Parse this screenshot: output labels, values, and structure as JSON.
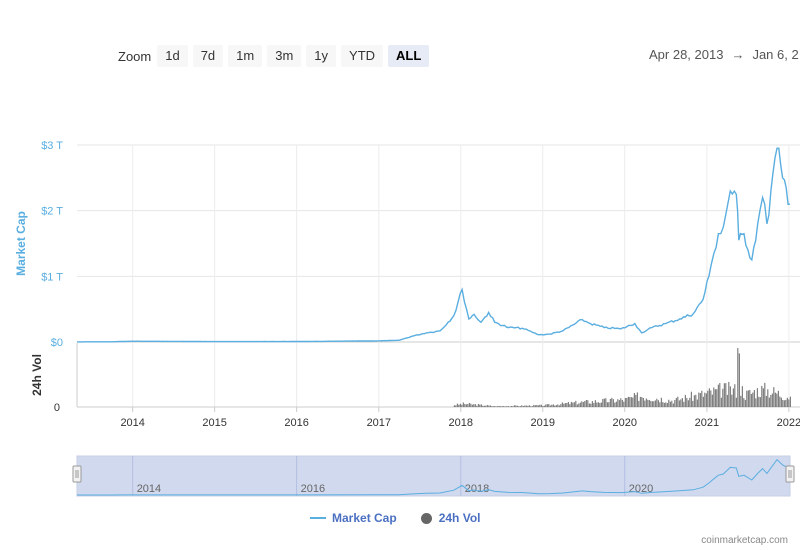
{
  "toolbar": {
    "zoom_label": "Zoom",
    "buttons": [
      "1d",
      "7d",
      "1m",
      "3m",
      "1y",
      "YTD",
      "ALL"
    ],
    "active": "ALL"
  },
  "date_range": {
    "from": "Apr 28, 2013",
    "arrow": "→",
    "to": "Jan 6, 2"
  },
  "legend": {
    "market_cap": "Market Cap",
    "volume": "24h Vol"
  },
  "credit": "coinmarketcap.com",
  "colors": {
    "line": "#5aaee0",
    "volume": "#666666",
    "navigator_fill": "#d1d9ee",
    "accent": "#4b70c2"
  },
  "chart_data": {
    "type": "line",
    "x_tick_labels": [
      "2014",
      "2015",
      "2016",
      "2017",
      "2018",
      "2019",
      "2020",
      "2021",
      "2022"
    ],
    "y_tick_labels": [
      "$0",
      "$1 T",
      "$2 T",
      "$3 T"
    ],
    "ylabel": "Market Cap",
    "ylim": [
      0,
      3
    ],
    "volume_axis_label": "24h Vol",
    "volume_tick_labels": [
      "0"
    ],
    "navigator_tick_labels": [
      "2014",
      "2016",
      "2018",
      "2020"
    ],
    "series": [
      {
        "name": "Market Cap",
        "x": [
          "2013-04-28",
          "2013-10-01",
          "2014-01-01",
          "2015-01-01",
          "2016-01-01",
          "2017-01-01",
          "2017-04-01",
          "2017-06-01",
          "2017-08-01",
          "2017-10-01",
          "2017-12-01",
          "2018-01-07",
          "2018-02-06",
          "2018-03-01",
          "2018-04-01",
          "2018-05-05",
          "2018-06-01",
          "2018-08-01",
          "2018-10-01",
          "2018-12-15",
          "2019-02-01",
          "2019-04-01",
          "2019-06-26",
          "2019-08-01",
          "2019-10-01",
          "2019-12-15",
          "2020-02-15",
          "2020-03-16",
          "2020-05-01",
          "2020-07-01",
          "2020-09-01",
          "2020-11-01",
          "2020-12-15",
          "2021-01-10",
          "2021-02-01",
          "2021-02-21",
          "2021-03-15",
          "2021-04-15",
          "2021-05-12",
          "2021-05-23",
          "2021-06-15",
          "2021-07-20",
          "2021-08-15",
          "2021-09-06",
          "2021-09-25",
          "2021-11-09",
          "2021-12-04",
          "2021-12-20",
          "2022-01-06"
        ],
        "values": [
          0.002,
          0.003,
          0.012,
          0.006,
          0.007,
          0.017,
          0.026,
          0.09,
          0.14,
          0.17,
          0.4,
          0.8,
          0.35,
          0.42,
          0.3,
          0.45,
          0.3,
          0.22,
          0.21,
          0.11,
          0.12,
          0.17,
          0.34,
          0.28,
          0.22,
          0.2,
          0.28,
          0.14,
          0.22,
          0.28,
          0.35,
          0.43,
          0.65,
          1.0,
          1.35,
          1.65,
          1.75,
          2.3,
          2.25,
          1.55,
          1.65,
          1.25,
          1.8,
          2.2,
          1.8,
          2.95,
          2.5,
          2.35,
          2.1
        ]
      },
      {
        "name": "24h Vol",
        "x": [
          "2017-12-01",
          "2018-01-15",
          "2018-06-01",
          "2019-01-01",
          "2019-06-26",
          "2020-01-01",
          "2020-03-12",
          "2020-08-01",
          "2021-01-11",
          "2021-02-23",
          "2021-05-19",
          "2021-06-15",
          "2021-09-07",
          "2021-12-04",
          "2022-01-06"
        ],
        "values": [
          0.05,
          0.08,
          0.02,
          0.04,
          0.12,
          0.18,
          0.28,
          0.16,
          0.35,
          0.4,
          1.0,
          0.3,
          0.45,
          0.3,
          0.25
        ]
      }
    ]
  }
}
